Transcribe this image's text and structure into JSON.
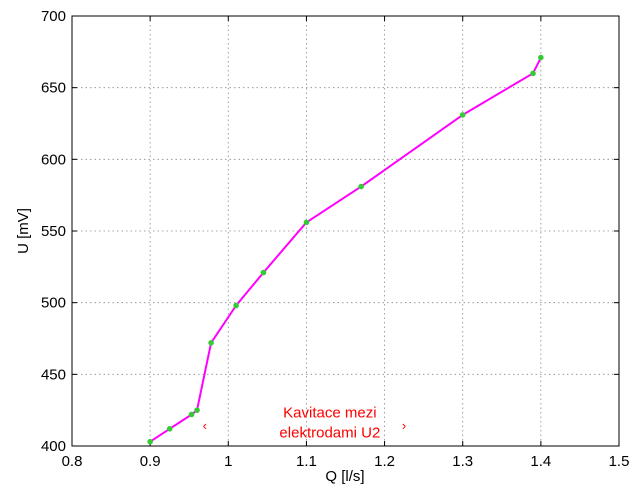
{
  "chart_data": {
    "type": "line",
    "title": "",
    "xlabel": "Q [l/s]",
    "ylabel": "U [mV]",
    "xlim": [
      0.8,
      1.5
    ],
    "ylim": [
      400,
      700
    ],
    "xticks": [
      "0.8",
      "0.9",
      "1",
      "1.1",
      "1.2",
      "1.3",
      "1.4",
      "1.5"
    ],
    "yticks": [
      "400",
      "450",
      "500",
      "550",
      "600",
      "650",
      "700"
    ],
    "grid": true,
    "series": [
      {
        "x": [
          0.9,
          0.925,
          0.953,
          0.96,
          0.978,
          1.01,
          1.045,
          1.1,
          1.17,
          1.3,
          1.39,
          1.4
        ],
        "y": [
          403,
          412,
          422,
          425,
          472,
          498,
          521,
          556,
          581,
          631,
          660,
          671
        ],
        "line_color": "#ff00ff",
        "marker_color": "#33cc33"
      }
    ],
    "annotations": [
      {
        "text": "Kavitace mezi",
        "x": 1.13,
        "y": 420
      },
      {
        "text": "elektrodami U2",
        "x": 1.13,
        "y": 406
      }
    ],
    "bracket_markers": [
      {
        "text": "‹",
        "x": 0.97,
        "y": 411
      },
      {
        "text": "›",
        "x": 1.225,
        "y": 411
      }
    ]
  }
}
